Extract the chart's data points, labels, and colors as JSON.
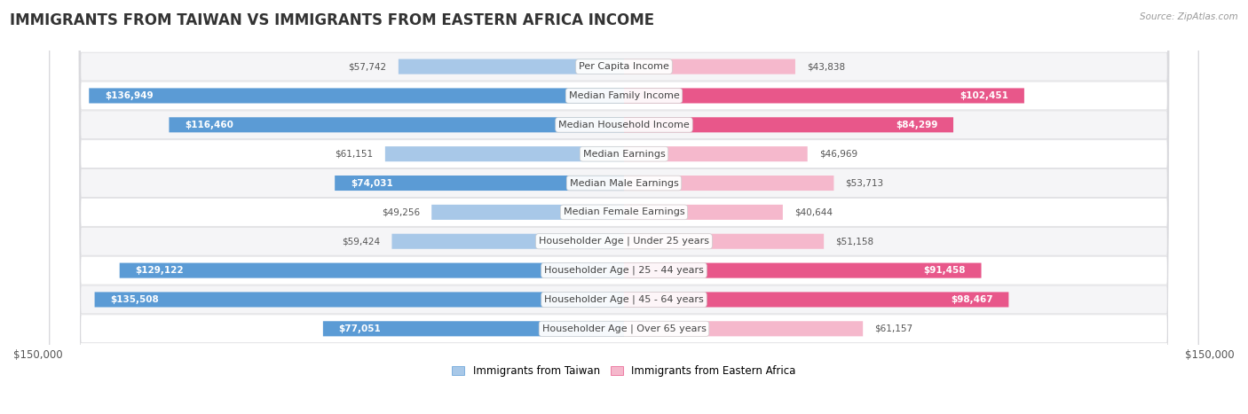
{
  "title": "IMMIGRANTS FROM TAIWAN VS IMMIGRANTS FROM EASTERN AFRICA INCOME",
  "source": "Source: ZipAtlas.com",
  "categories": [
    "Per Capita Income",
    "Median Family Income",
    "Median Household Income",
    "Median Earnings",
    "Median Male Earnings",
    "Median Female Earnings",
    "Householder Age | Under 25 years",
    "Householder Age | 25 - 44 years",
    "Householder Age | 45 - 64 years",
    "Householder Age | Over 65 years"
  ],
  "taiwan_values": [
    57742,
    136949,
    116460,
    61151,
    74031,
    49256,
    59424,
    129122,
    135508,
    77051
  ],
  "eastern_africa_values": [
    43838,
    102451,
    84299,
    46969,
    53713,
    40644,
    51158,
    91458,
    98467,
    61157
  ],
  "taiwan_color_light": "#a8c8e8",
  "taiwan_color_dark": "#5b9bd5",
  "eastern_africa_color_light": "#f5b8cc",
  "eastern_africa_color_dark": "#e8578a",
  "taiwan_label": "Immigrants from Taiwan",
  "eastern_africa_label": "Immigrants from Eastern Africa",
  "axis_max": 150000,
  "row_bg_light": "#f5f5f7",
  "row_bg_white": "#ffffff",
  "row_border": "#d8d8dc",
  "dark_threshold": 68000,
  "title_fontsize": 12,
  "label_fontsize": 8,
  "value_fontsize": 7.5,
  "legend_fontsize": 8.5
}
